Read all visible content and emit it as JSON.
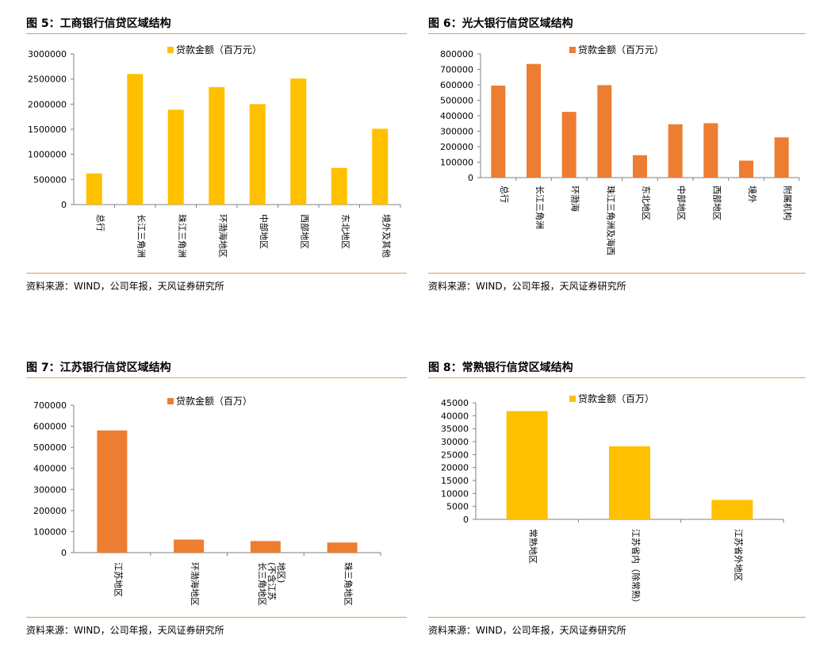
{
  "colors": {
    "orange": "#ED7D31",
    "gold": "#FFC000",
    "axis": "#808080",
    "rule": "#E39B52"
  },
  "source_text": "资料来源：WIND，公司年报，天风证券研究所",
  "panels": [
    {
      "title": "图 5：工商银行信贷区域结构",
      "chart_data": {
        "type": "bar",
        "title": "",
        "legend": "贷款金额（百万元）",
        "legend_position": "top-center",
        "color": "#FFC000",
        "categories": [
          "总行",
          "长江三角洲",
          "珠江三角洲",
          "环渤海地区",
          "中部地区",
          "西部地区",
          "东北地区",
          "境外及其他"
        ],
        "values": [
          620000,
          2600000,
          1890000,
          2340000,
          2000000,
          2510000,
          730000,
          1510000
        ],
        "yticks": [
          "0",
          "500000",
          "1000000",
          "1500000",
          "2000000",
          "2500000",
          "3000000"
        ],
        "ylim": [
          0,
          3000000
        ]
      }
    },
    {
      "title": "图 6：光大银行信贷区域结构",
      "chart_data": {
        "type": "bar",
        "title": "",
        "legend": "贷款金额（百万元）",
        "legend_position": "top-center",
        "color": "#ED7D31",
        "categories": [
          "总行",
          "长江三角洲",
          "环渤海",
          "珠江三角洲及海西",
          "东北地区",
          "中部地区",
          "西部地区",
          "境外",
          "附属机构"
        ],
        "values": [
          595000,
          735000,
          425000,
          598000,
          145000,
          345000,
          352000,
          110000,
          260000
        ],
        "yticks": [
          "0",
          "100000",
          "200000",
          "300000",
          "400000",
          "500000",
          "600000",
          "700000",
          "800000"
        ],
        "ylim": [
          0,
          800000
        ]
      }
    },
    {
      "title": "图 7：江苏银行信贷区域结构",
      "chart_data": {
        "type": "bar",
        "title": "",
        "legend": "贷款金额（百万）",
        "legend_position": "top-center",
        "color": "#ED7D31",
        "categories": [
          "江苏地区",
          "环渤海地区",
          "长三角地区(不含江苏地区)",
          "珠三角地区"
        ],
        "category_lines": [
          [
            "江苏地区"
          ],
          [
            "环渤海地区"
          ],
          [
            "长三角地区",
            "(不含江苏",
            "地区)"
          ],
          [
            "珠三角地区"
          ]
        ],
        "values": [
          580000,
          62000,
          55000,
          48000
        ],
        "yticks": [
          "0",
          "100000",
          "200000",
          "300000",
          "400000",
          "500000",
          "600000",
          "700000"
        ],
        "ylim": [
          0,
          700000
        ]
      }
    },
    {
      "title": "图 8：常熟银行信贷区域结构",
      "chart_data": {
        "type": "bar",
        "title": "",
        "legend": "贷款金额（百万）",
        "legend_position": "top-center",
        "color": "#FFC000",
        "categories": [
          "常熟地区",
          "江苏省内（除常熟）",
          "江苏省外地区"
        ],
        "values": [
          41800,
          28200,
          7500
        ],
        "yticks": [
          "0",
          "5000",
          "10000",
          "15000",
          "20000",
          "25000",
          "30000",
          "35000",
          "40000",
          "45000"
        ],
        "ylim": [
          0,
          45000
        ]
      }
    }
  ]
}
